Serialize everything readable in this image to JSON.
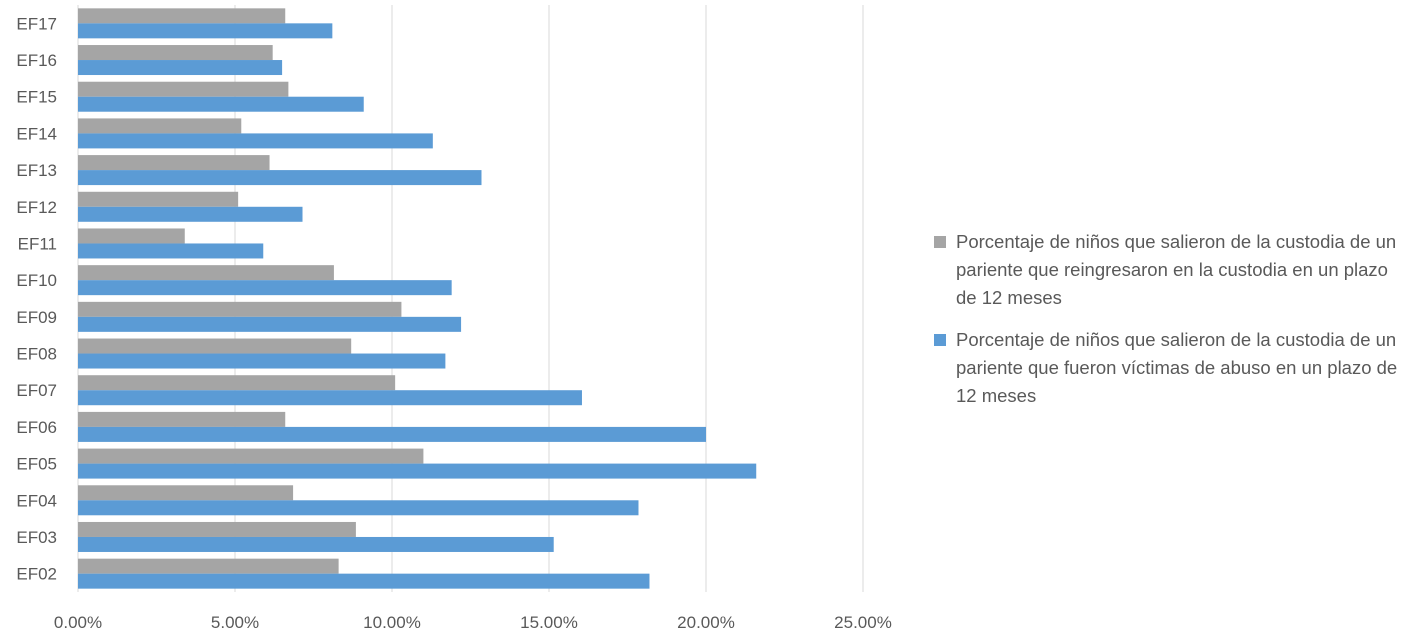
{
  "chart_data": {
    "type": "bar",
    "orientation": "horizontal",
    "categories": [
      "EF02",
      "EF03",
      "EF04",
      "EF05",
      "EF06",
      "EF07",
      "EF08",
      "EF09",
      "EF10",
      "EF11",
      "EF12",
      "EF13",
      "EF14",
      "EF15",
      "EF16",
      "EF17"
    ],
    "series": [
      {
        "name": "Porcentaje de niños que salieron de la custodia de un pariente que reingresaron en la custodia en un plazo de 12 meses",
        "color": "#a5a5a5",
        "values": [
          0.083,
          0.0885,
          0.0685,
          0.11,
          0.066,
          0.101,
          0.087,
          0.103,
          0.0815,
          0.034,
          0.051,
          0.061,
          0.052,
          0.067,
          0.062,
          0.066
        ]
      },
      {
        "name": "Porcentaje de niños que salieron de la custodia de un pariente que fueron víctimas de abuso en un plazo de 12 meses",
        "color": "#5b9bd5",
        "values": [
          0.182,
          0.1515,
          0.1785,
          0.216,
          0.2,
          0.1605,
          0.117,
          0.122,
          0.119,
          0.059,
          0.0715,
          0.1285,
          0.113,
          0.091,
          0.065,
          0.081
        ]
      }
    ],
    "xlim": [
      0,
      0.25
    ],
    "x_ticks": [
      "0.00%",
      "5.00%",
      "10.00%",
      "15.00%",
      "20.00%",
      "25.00%"
    ],
    "grid": true,
    "legend_position": "right"
  }
}
